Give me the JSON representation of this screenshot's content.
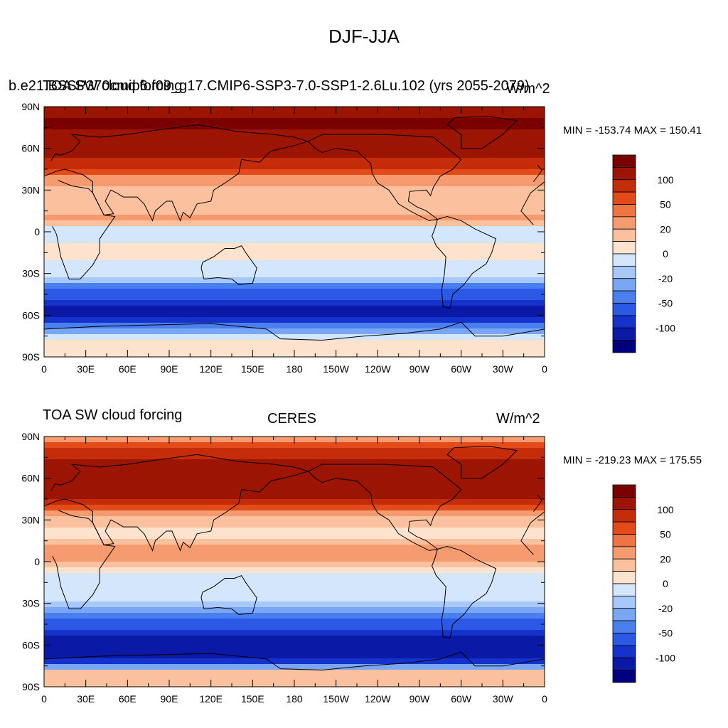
{
  "figure_title": "DJF-JJA",
  "panels": [
    {
      "left_title": "TOA SW cloud forcing",
      "center_title": "b.e21.BSSP370cmip6.f09_g17.CMIP6-SSP3-7.0-SSP1-2.6Lu.102 (yrs 2055-2079)",
      "right_title": "W/m^2",
      "minmax": "MIN = -153.74 MAX = 150.41"
    },
    {
      "left_title": "TOA SW cloud forcing",
      "center_title": "CERES",
      "right_title": "W/m^2",
      "minmax": "MIN = -219.23 MAX = 175.55"
    }
  ],
  "colors": {
    "levels_bottom_to_top": [
      "#00007e",
      "#0a1aa6",
      "#1533cc",
      "#2b59e6",
      "#4a7ff0",
      "#7aa6f6",
      "#a9c8fa",
      "#d3e6fc",
      "#fde3cd",
      "#fbc09d",
      "#f69b6f",
      "#ee7442",
      "#e34b1a",
      "#c52c09",
      "#9c1502",
      "#7a0000"
    ],
    "coastline": "#000000"
  },
  "chart_data": [
    {
      "type": "heatmap",
      "title": "TOA SW cloud forcing",
      "subtitle": "b.e21.BSSP370cmip6.f09_g17.CMIP6-SSP3-7.0-SSP1-2.6Lu.102 (yrs 2055-2079)",
      "units": "W/m^2",
      "min": -153.74,
      "max": 150.41,
      "x_ticks": [
        "0",
        "30E",
        "60E",
        "90E",
        "120E",
        "150E",
        "180",
        "150W",
        "120W",
        "90W",
        "60W",
        "30W",
        "0"
      ],
      "y_ticks": [
        "90N",
        "60N",
        "30N",
        "0",
        "30S",
        "60S",
        "90S"
      ],
      "colorbar_labels": [
        "100",
        "50",
        "20",
        "0",
        "-20",
        "-50",
        "-100"
      ],
      "zonal_profile": {
        "lat": [
          90,
          80,
          70,
          60,
          50,
          40,
          30,
          20,
          10,
          0,
          -10,
          -20,
          -30,
          -40,
          -50,
          -60,
          -70,
          -80,
          -90
        ],
        "value": [
          80,
          110,
          95,
          85,
          75,
          40,
          15,
          5,
          30,
          -40,
          -15,
          -20,
          -30,
          -70,
          -110,
          -130,
          -60,
          -5,
          -5
        ]
      }
    },
    {
      "type": "heatmap",
      "title": "TOA SW cloud forcing",
      "subtitle": "CERES",
      "units": "W/m^2",
      "min": -219.23,
      "max": 175.55,
      "x_ticks": [
        "0",
        "30E",
        "60E",
        "90E",
        "120E",
        "150E",
        "180",
        "150W",
        "120W",
        "90W",
        "60W",
        "30W",
        "0"
      ],
      "y_ticks": [
        "90N",
        "60N",
        "30N",
        "0",
        "30S",
        "60S",
        "90S"
      ],
      "colorbar_labels": [
        "100",
        "50",
        "20",
        "0",
        "-20",
        "-50",
        "-100"
      ],
      "zonal_profile": {
        "lat": [
          90,
          80,
          70,
          60,
          50,
          40,
          30,
          20,
          10,
          0,
          -10,
          -20,
          -30,
          -40,
          -50,
          -60,
          -70,
          -80,
          -90
        ],
        "value": [
          20,
          70,
          90,
          95,
          90,
          60,
          10,
          -10,
          30,
          20,
          -30,
          -30,
          -40,
          -70,
          -110,
          -140,
          -130,
          10,
          10
        ]
      }
    }
  ]
}
